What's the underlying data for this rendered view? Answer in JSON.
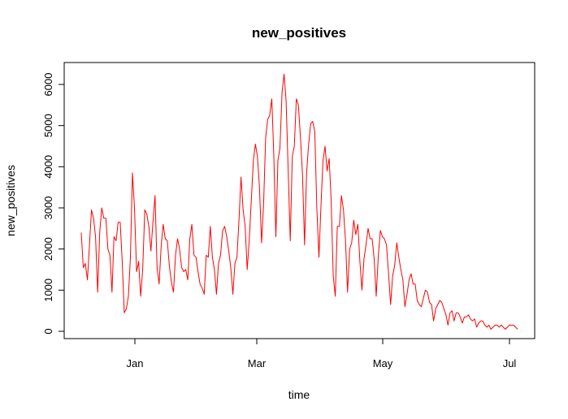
{
  "chart_data": {
    "type": "line",
    "title": "new_positives",
    "xlabel": "time",
    "ylabel": "new_positives",
    "color": "#ff0000",
    "x_ticks": [
      "Jan",
      "Mar",
      "May",
      "Jul"
    ],
    "y_ticks": [
      "0",
      "1000",
      "2000",
      "3000",
      "4000",
      "5000",
      "6000"
    ],
    "grid": false,
    "series": [
      {
        "values": [
          2400,
          1550,
          1650,
          1250,
          2100,
          2950,
          2750,
          2300,
          950,
          2400,
          3000,
          2750,
          2750,
          2000,
          1850,
          950,
          2300,
          2200,
          2650,
          2650,
          1700,
          450,
          550,
          850,
          1800,
          3850,
          3000,
          1450,
          1700,
          850,
          1500,
          2950,
          2850,
          2550,
          1950,
          2650,
          3300,
          1550,
          1150,
          2050,
          2600,
          2250,
          2200,
          1600,
          1200,
          950,
          1850,
          2250,
          2000,
          1550,
          1450,
          1500,
          1250,
          2250,
          2600,
          1850,
          1800,
          1450,
          1150,
          1050,
          900,
          1850,
          1800,
          2550,
          1800,
          1500,
          900,
          1650,
          1850,
          2450,
          2550,
          2300,
          1950,
          1550,
          900,
          1650,
          1800,
          2700,
          3750,
          2950,
          2550,
          1500,
          2200,
          3200,
          4150,
          4550,
          4250,
          3500,
          2150,
          3100,
          4700,
          5150,
          5250,
          5650,
          4250,
          2300,
          4150,
          4450,
          5800,
          6250,
          5600,
          3950,
          2200,
          4250,
          4500,
          5650,
          5500,
          4700,
          3800,
          2100,
          3850,
          4550,
          5050,
          5100,
          4850,
          3000,
          1800,
          3050,
          4150,
          4500,
          3900,
          4200,
          3150,
          1350,
          850,
          2550,
          2550,
          3300,
          2950,
          2200,
          950,
          2000,
          2150,
          2700,
          2350,
          2600,
          1700,
          1000,
          1750,
          2100,
          2500,
          2250,
          2250,
          1750,
          850,
          1850,
          2450,
          2300,
          2250,
          2100,
          1400,
          650,
          1350,
          1600,
          2150,
          1800,
          1500,
          1250,
          600,
          900,
          1250,
          1400,
          1150,
          1150,
          750,
          650,
          600,
          800,
          1000,
          950,
          700,
          650,
          250,
          550,
          650,
          750,
          700,
          550,
          400,
          150,
          450,
          500,
          250,
          450,
          450,
          350,
          200,
          350,
          350,
          400,
          300,
          250,
          300,
          100,
          200,
          250,
          250,
          150,
          100,
          150,
          50,
          100,
          150,
          150,
          100,
          150,
          100,
          50,
          100,
          150,
          150,
          150,
          100,
          50
        ]
      }
    ]
  }
}
